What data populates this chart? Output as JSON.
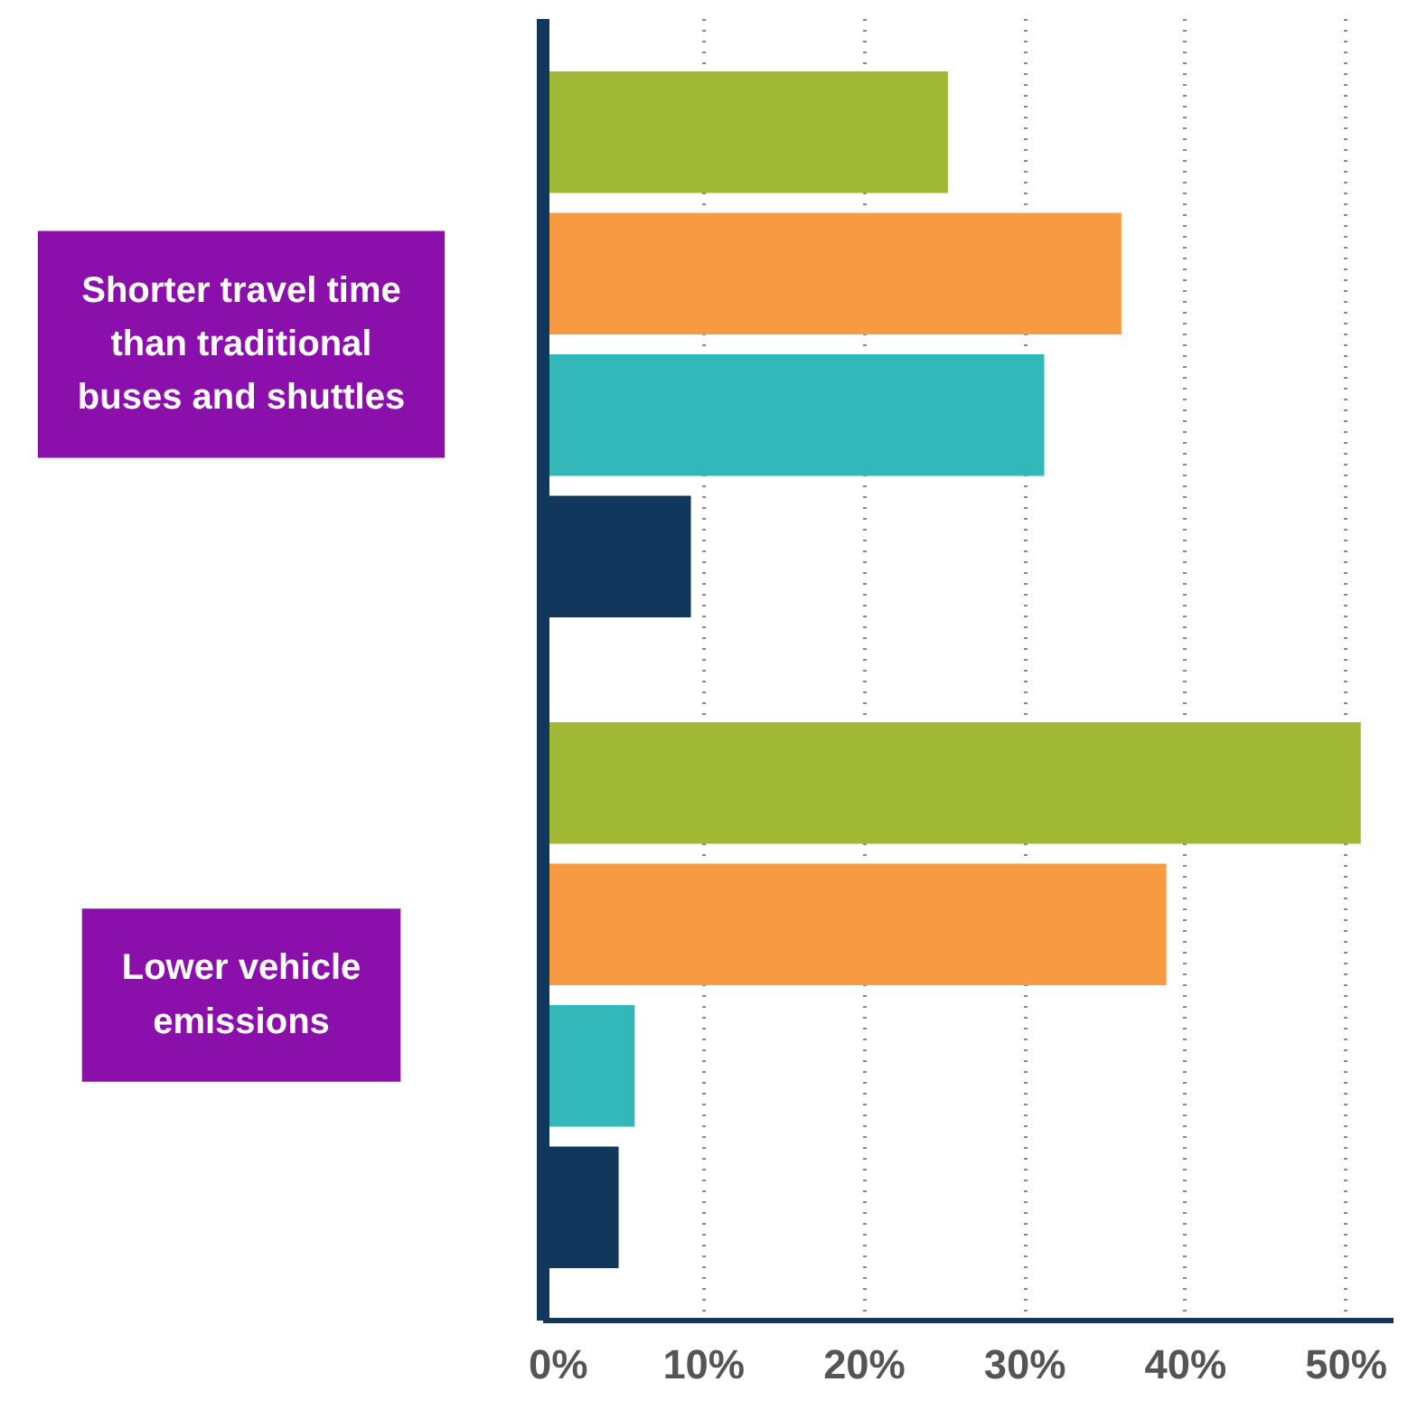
{
  "chart_data": {
    "type": "bar",
    "orientation": "horizontal",
    "categories": [
      "Shorter travel time than traditional buses and shuttles",
      "Lower vehicle emissions"
    ],
    "series": [
      {
        "color": "#a0b833",
        "values": [
          25.2,
          50.9
        ]
      },
      {
        "color": "#f79a42",
        "values": [
          36.0,
          38.8
        ]
      },
      {
        "color": "#33b8b9",
        "values": [
          31.2,
          5.7
        ]
      },
      {
        "color": "#11375c",
        "values": [
          9.2,
          4.7
        ]
      }
    ],
    "xlim": [
      0,
      53
    ],
    "xticks": [
      {
        "value": 0,
        "label": "0%"
      },
      {
        "value": 10,
        "label": "10%"
      },
      {
        "value": 20,
        "label": "20%"
      },
      {
        "value": 30,
        "label": "30%"
      },
      {
        "value": 40,
        "label": "40%"
      },
      {
        "value": 50,
        "label": "50%"
      }
    ],
    "grid": "x"
  }
}
